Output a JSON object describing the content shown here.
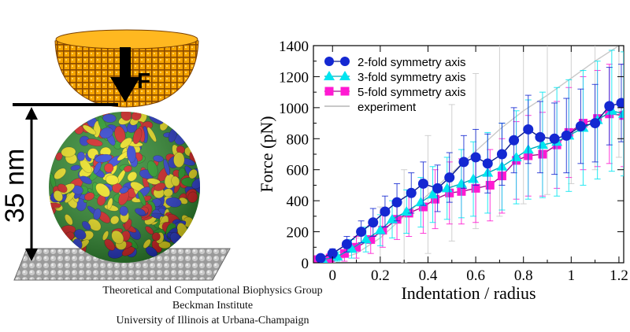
{
  "illustration": {
    "force_label": "F",
    "size_label": "35 nm"
  },
  "credits": {
    "line1": "Theoretical and Computational Biophysics Group",
    "line2": "Beckman Institute",
    "line3": "University of Illinois at Urbana-Champaign"
  },
  "chart_data": {
    "type": "line",
    "title": "",
    "xlabel": "Indentation / radius",
    "ylabel": "Force (pN)",
    "xlim": [
      -0.08,
      1.22
    ],
    "ylim": [
      0,
      1400
    ],
    "xticks": [
      0,
      0.2,
      0.4,
      0.6,
      0.8,
      1,
      1.2
    ],
    "xtick_labels": [
      "0",
      "0.2",
      "0.4",
      "0.6",
      "0.8",
      "1",
      "1.2"
    ],
    "yticks": [
      0,
      200,
      400,
      600,
      800,
      1000,
      1200,
      1400
    ],
    "ytick_labels": [
      "0",
      "200",
      "400",
      "600",
      "800",
      "1000",
      "1200",
      "1400"
    ],
    "legend_position": "top-left",
    "grid": false,
    "series": [
      {
        "name": "2-fold symmetry axis",
        "color": "#1428d2",
        "marker": "circle",
        "x": [
          -0.05,
          0.0,
          0.06,
          0.12,
          0.17,
          0.22,
          0.27,
          0.33,
          0.38,
          0.44,
          0.49,
          0.55,
          0.6,
          0.65,
          0.71,
          0.76,
          0.82,
          0.87,
          0.93,
          0.98,
          1.04,
          1.1,
          1.16,
          1.21
        ],
        "y": [
          30,
          60,
          120,
          200,
          260,
          330,
          390,
          450,
          510,
          480,
          550,
          650,
          680,
          640,
          700,
          790,
          860,
          810,
          800,
          820,
          880,
          900,
          1010,
          1030
        ],
        "err": [
          20,
          30,
          50,
          70,
          90,
          100,
          120,
          130,
          140,
          150,
          160,
          170,
          180,
          190,
          200,
          210,
          220,
          230,
          230,
          240,
          240,
          250,
          250,
          250
        ]
      },
      {
        "name": "3-fold symmetry axis",
        "color": "#00e5f0",
        "marker": "triangle",
        "x": [
          -0.04,
          0.02,
          0.08,
          0.14,
          0.2,
          0.25,
          0.31,
          0.37,
          0.42,
          0.48,
          0.54,
          0.59,
          0.65,
          0.71,
          0.77,
          0.82,
          0.88,
          0.94,
          0.99,
          1.05,
          1.11,
          1.17,
          1.22
        ],
        "y": [
          20,
          40,
          90,
          150,
          210,
          280,
          330,
          390,
          440,
          480,
          510,
          540,
          580,
          620,
          680,
          730,
          760,
          780,
          820,
          870,
          920,
          980,
          960
        ],
        "err": [
          20,
          30,
          60,
          80,
          100,
          120,
          140,
          160,
          180,
          200,
          220,
          240,
          260,
          280,
          300,
          320,
          340,
          350,
          360,
          370,
          380,
          390,
          400
        ]
      },
      {
        "name": "5-fold symmetry axis",
        "color": "#ff1ad2",
        "marker": "square",
        "x": [
          -0.06,
          -0.01,
          0.05,
          0.1,
          0.16,
          0.21,
          0.27,
          0.32,
          0.38,
          0.43,
          0.49,
          0.54,
          0.6,
          0.66,
          0.71,
          0.77,
          0.82,
          0.88,
          0.94,
          0.99,
          1.05,
          1.11,
          1.16,
          1.22
        ],
        "y": [
          20,
          30,
          60,
          100,
          150,
          210,
          280,
          320,
          360,
          410,
          450,
          460,
          480,
          500,
          560,
          660,
          690,
          700,
          760,
          840,
          900,
          930,
          960,
          950
        ],
        "err": [
          20,
          30,
          50,
          70,
          90,
          110,
          130,
          150,
          170,
          190,
          200,
          210,
          220,
          230,
          240,
          250,
          260,
          270,
          280,
          290,
          300,
          310,
          320,
          330
        ]
      },
      {
        "name": "experiment",
        "color": "#c8c8c8",
        "marker": "none",
        "x": [
          -0.06,
          0.0,
          0.1,
          0.2,
          0.3,
          0.4,
          0.5,
          0.6,
          0.7,
          0.8,
          0.9,
          1.0,
          1.1,
          1.2
        ],
        "y": [
          0,
          10,
          60,
          160,
          300,
          440,
          580,
          720,
          860,
          980,
          1080,
          1190,
          1300,
          1400
        ],
        "err": [
          0,
          10,
          100,
          200,
          300,
          380,
          440,
          500,
          560,
          600,
          640,
          680,
          700,
          720
        ]
      }
    ]
  }
}
